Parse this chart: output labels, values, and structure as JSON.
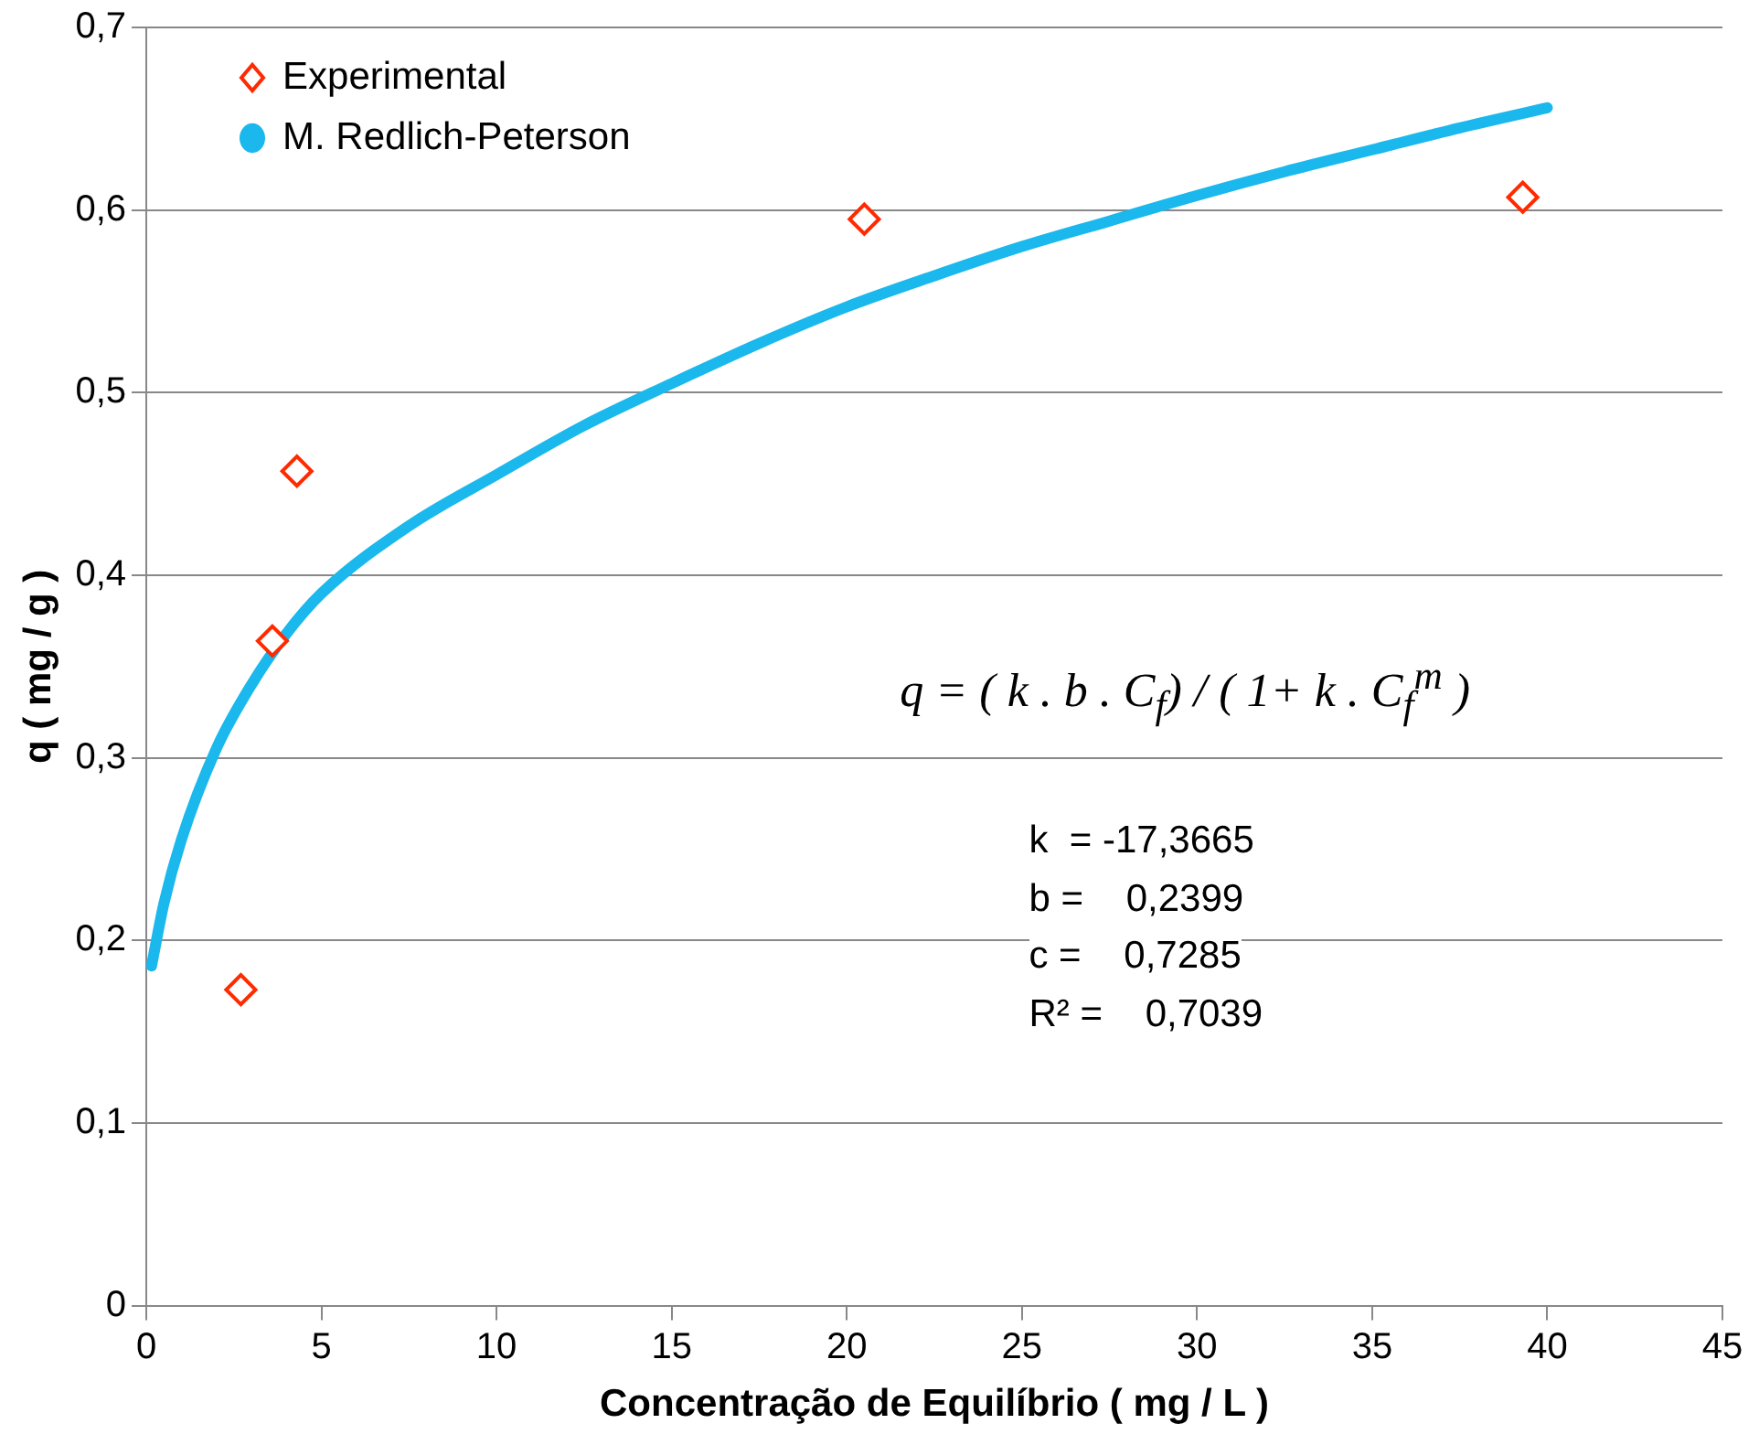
{
  "chart_data": {
    "type": "scatter",
    "xlabel": "Concentração de Equilíbrio ( mg / L )",
    "ylabel": "q ( mg / g )",
    "xlim": [
      0,
      45
    ],
    "xticks": [
      0,
      5,
      10,
      15,
      20,
      25,
      30,
      35,
      40,
      45
    ],
    "ylim": [
      0,
      0.7
    ],
    "yticks": [
      0,
      {
        "value": 0.1,
        "label": "0,1"
      },
      {
        "value": 0.2,
        "label": "0,2"
      },
      {
        "value": 0.3,
        "label": "0,3"
      },
      {
        "value": 0.4,
        "label": "0,4"
      },
      {
        "value": 0.5,
        "label": "0,5"
      },
      {
        "value": 0.6,
        "label": "0,6"
      },
      {
        "value": 0.7,
        "label": "0,7"
      }
    ],
    "grid": "y",
    "legend": "top left",
    "series": [
      {
        "name": "Experimental",
        "type": "scatter",
        "marker": "diamond",
        "color": "#ff2a00",
        "x": [
          2.7,
          3.6,
          4.3,
          20.5,
          39.3
        ],
        "values": [
          0.173,
          0.364,
          0.457,
          0.595,
          0.607
        ]
      },
      {
        "name": "M. Redlich-Peterson",
        "type": "line",
        "color": "#1ab8ec",
        "x": [
          0.15,
          0.5,
          1,
          2,
          3,
          4,
          5,
          7.5,
          10,
          12.5,
          15,
          17.5,
          20,
          22.5,
          25,
          27.5,
          30,
          32.5,
          35,
          37.5,
          40
        ],
        "values": [
          0.186,
          0.22,
          0.255,
          0.305,
          0.34,
          0.368,
          0.39,
          0.427,
          0.455,
          0.482,
          0.505,
          0.527,
          0.547,
          0.564,
          0.58,
          0.594,
          0.608,
          0.621,
          0.633,
          0.645,
          0.656
        ]
      }
    ],
    "annotations": [
      "q = ( k . b . C$_{f}$) / ( 1+ k . C$_{f}$$^{m}$ )",
      "k  = -17,3665",
      "b =    0,2399",
      "c =    0,7285",
      "R² =    0,7039"
    ]
  }
}
